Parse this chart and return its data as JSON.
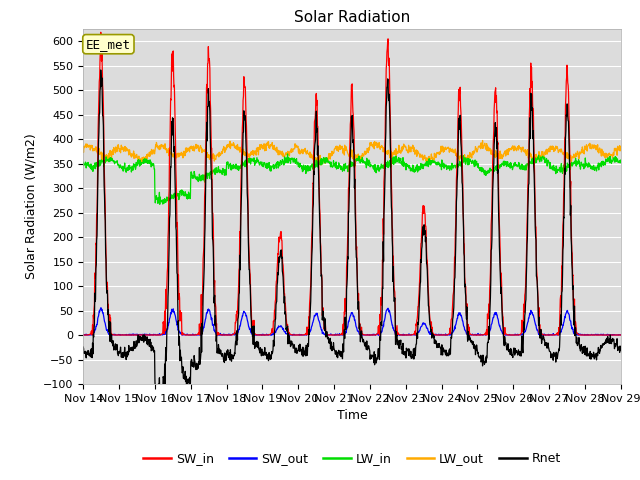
{
  "title": "Solar Radiation",
  "xlabel": "Time",
  "ylabel": "Solar Radiation (W/m2)",
  "ylim": [
    -100,
    625
  ],
  "yticks": [
    -100,
    -50,
    0,
    50,
    100,
    150,
    200,
    250,
    300,
    350,
    400,
    450,
    500,
    550,
    600
  ],
  "n_days": 15,
  "n_per_day": 96,
  "annotation": "EE_met",
  "colors": {
    "SW_in": "#ff0000",
    "SW_out": "#0000ff",
    "LW_in": "#00dd00",
    "LW_out": "#ffaa00",
    "Rnet": "#000000"
  },
  "bg_color": "#dcdcdc",
  "legend_labels": [
    "SW_in",
    "SW_out",
    "LW_in",
    "LW_out",
    "Rnet"
  ],
  "day_peaks_SW_in": [
    600,
    0,
    575,
    575,
    520,
    210,
    490,
    490,
    600,
    260,
    490,
    490,
    530,
    530,
    0
  ],
  "sw_out_ratio": 0.09,
  "lw_in_base": 348,
  "lw_out_base": 375
}
